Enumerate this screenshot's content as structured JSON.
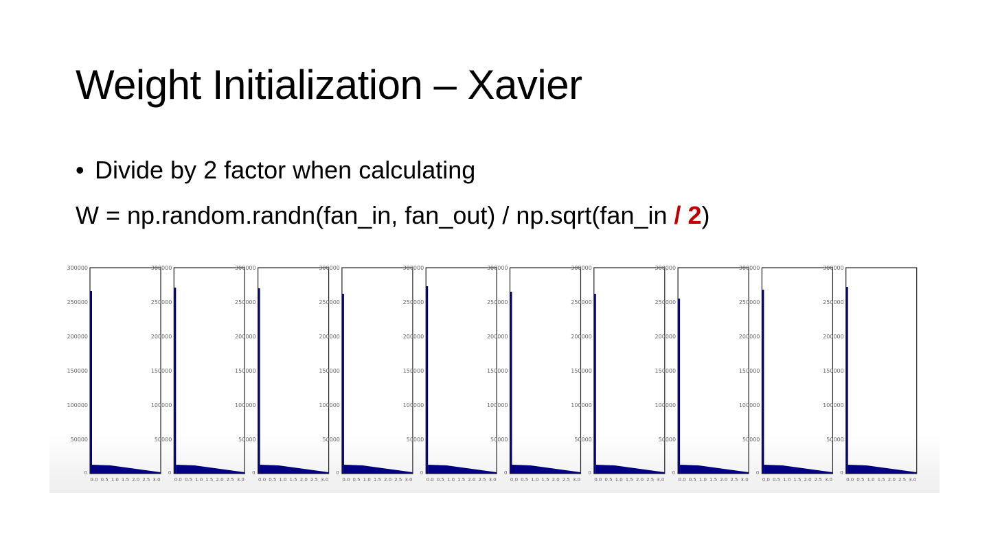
{
  "slide": {
    "title": "Weight Initialization – Xavier",
    "bullet": "Divide by 2 factor when calculating",
    "code": {
      "prefix": "W = np.random.randn(fan_in, fan_out) / np.sqrt(fan_in ",
      "highlight": "/ 2",
      "suffix": ")",
      "highlight_color": "#c00000"
    }
  },
  "chart_data": {
    "type": "bar",
    "panel_count": 10,
    "ylim": [
      0,
      300000
    ],
    "y_ticks": [
      "0",
      "50000",
      "100000",
      "150000",
      "200000",
      "250000",
      "300000"
    ],
    "x_ticks": [
      "0.0",
      "0.5",
      "1.0",
      "1.5",
      "2.0",
      "2.5",
      "3.0"
    ],
    "bar_color": "#000080",
    "grid": false,
    "peak_values": [
      266000,
      271000,
      270000,
      262000,
      273000,
      265000,
      262000,
      255000,
      268000,
      272000
    ],
    "tail_start": 13000,
    "tail_end": 2000
  }
}
